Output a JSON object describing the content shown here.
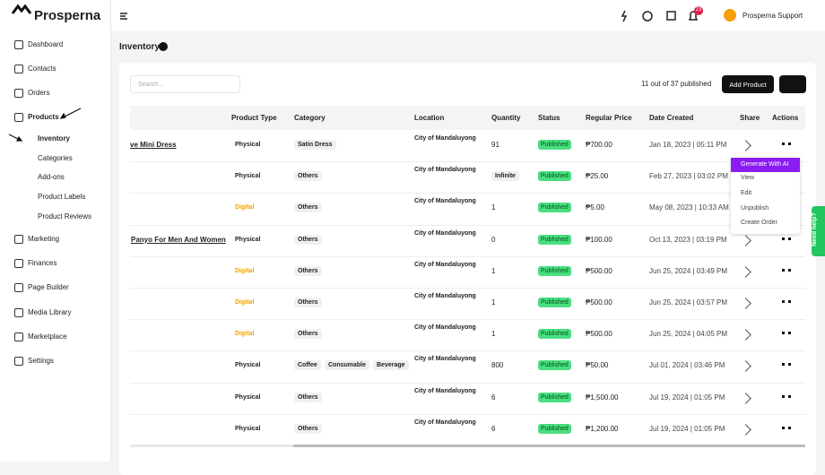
{
  "brand": "Prosperna",
  "topbar": {
    "notifications": "23",
    "user": "Prosperna Support"
  },
  "sidebar": {
    "items": [
      "Dashboard",
      "Contacts",
      "Orders",
      "Products",
      "Marketing",
      "Finances",
      "Page Builder",
      "Media Library",
      "Marketplace",
      "Settings"
    ],
    "submenu": [
      "Inventory",
      "Categories",
      "Add-ons",
      "Product Labels",
      "Product Reviews"
    ]
  },
  "page": {
    "title": "Inventory",
    "search_placeholder": "Search...",
    "published_count": "11 out of 37 published",
    "add_button": "Add Product"
  },
  "table": {
    "headers": [
      "Product Type",
      "Category",
      "Location",
      "Quantity",
      "Status",
      "Regular Price",
      "Date Created",
      "Share",
      "Actions"
    ],
    "rows": [
      {
        "name": "ve Mini Dress",
        "type": "Physical",
        "category": [
          "Satin Dress"
        ],
        "location": "City of Mandaluyong",
        "quantity": "91",
        "status": "Published",
        "price": "₱700.00",
        "date": "Jan 18, 2023 | 05:11 PM"
      },
      {
        "name": null,
        "type": "Physical",
        "category": [
          "Others"
        ],
        "location": "City of Mandaluyong",
        "quantity": "Infinite",
        "status": "Published",
        "price": "₱25.00",
        "date": "Feb 27, 2023 | 03:02 PM"
      },
      {
        "name": null,
        "type": "Digital",
        "category": [
          "Others"
        ],
        "location": "City of Mandaluyong",
        "quantity": "1",
        "status": "Published",
        "price": "₱5.00",
        "date": "May 08, 2023 | 10:33 AM"
      },
      {
        "name": "Panyo For Men And Women",
        "type": "Physical",
        "category": [
          "Others"
        ],
        "location": "City of Mandaluyong",
        "quantity": "0",
        "status": "Published",
        "price": "₱100.00",
        "date": "Oct 13, 2023 | 03:19 PM"
      },
      {
        "name": null,
        "type": "Digital",
        "category": [
          "Others"
        ],
        "location": "City of Mandaluyong",
        "quantity": "1",
        "status": "Published",
        "price": "₱500.00",
        "date": "Jun 25, 2024 | 03:49 PM"
      },
      {
        "name": null,
        "type": "Digital",
        "category": [
          "Others"
        ],
        "location": "City of Mandaluyong",
        "quantity": "1",
        "status": "Published",
        "price": "₱500.00",
        "date": "Jun 25, 2024 | 03:57 PM"
      },
      {
        "name": null,
        "type": "Digital",
        "category": [
          "Others"
        ],
        "location": "City of Mandaluyong",
        "quantity": "1",
        "status": "Published",
        "price": "₱500.00",
        "date": "Jun 25, 2024 | 04:05 PM"
      },
      {
        "name": null,
        "type": "Physical",
        "category": [
          "Coffee",
          "Consumable",
          "Beverage"
        ],
        "location": "City of Mandaluyong",
        "quantity": "800",
        "status": "Published",
        "price": "₱50.00",
        "date": "Jul 01, 2024 | 03:46 PM"
      },
      {
        "name": null,
        "type": "Physical",
        "category": [
          "Others"
        ],
        "location": "City of Mandaluyong",
        "quantity": "6",
        "status": "Published",
        "price": "₱1,500.00",
        "date": "Jul 19, 2024 | 01:05 PM"
      },
      {
        "name": null,
        "type": "Physical",
        "category": [
          "Others"
        ],
        "location": "City of Mandaluyong",
        "quantity": "6",
        "status": "Published",
        "price": "₱1,200.00",
        "date": "Jul 19, 2024 | 01:05 PM"
      }
    ]
  },
  "menu": [
    "Generate With AI",
    "View",
    "Edit",
    "Unpublish",
    "Create Order"
  ],
  "help": "Need help?"
}
